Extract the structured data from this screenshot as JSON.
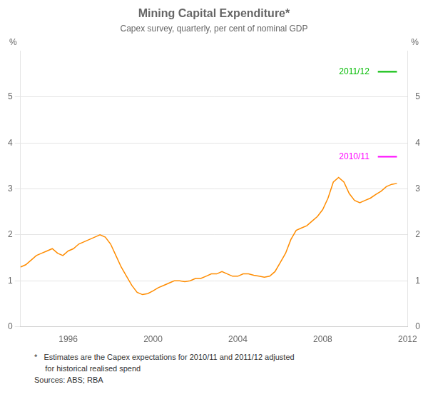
{
  "chart_data": {
    "type": "line",
    "title": "Mining Capital Expenditure*",
    "subtitle": "Capex survey, quarterly, per cent of nominal GDP",
    "ylabel": "%",
    "y2label": "%",
    "x": [
      1993.75,
      1994.0,
      1994.25,
      1994.5,
      1994.75,
      1995.0,
      1995.25,
      1995.5,
      1995.75,
      1996.0,
      1996.25,
      1996.5,
      1996.75,
      1997.0,
      1997.25,
      1997.5,
      1997.75,
      1998.0,
      1998.25,
      1998.5,
      1998.75,
      1999.0,
      1999.25,
      1999.5,
      1999.75,
      2000.0,
      2000.25,
      2000.5,
      2000.75,
      2001.0,
      2001.25,
      2001.5,
      2001.75,
      2002.0,
      2002.25,
      2002.5,
      2002.75,
      2003.0,
      2003.25,
      2003.5,
      2003.75,
      2004.0,
      2004.25,
      2004.5,
      2004.75,
      2005.0,
      2005.25,
      2005.5,
      2005.75,
      2006.0,
      2006.25,
      2006.5,
      2006.75,
      2007.0,
      2007.25,
      2007.5,
      2007.75,
      2008.0,
      2008.25,
      2008.5,
      2008.75,
      2009.0,
      2009.25,
      2009.5,
      2009.75,
      2010.0,
      2010.25,
      2010.5,
      2010.75,
      2011.0,
      2011.25,
      2011.5
    ],
    "values": [
      1.3,
      1.35,
      1.45,
      1.55,
      1.6,
      1.65,
      1.7,
      1.6,
      1.55,
      1.65,
      1.7,
      1.8,
      1.85,
      1.9,
      1.95,
      2.0,
      1.95,
      1.8,
      1.55,
      1.3,
      1.1,
      0.9,
      0.75,
      0.7,
      0.72,
      0.78,
      0.85,
      0.9,
      0.95,
      1.0,
      1.0,
      0.98,
      1.0,
      1.05,
      1.05,
      1.1,
      1.15,
      1.15,
      1.2,
      1.15,
      1.1,
      1.1,
      1.15,
      1.15,
      1.12,
      1.1,
      1.08,
      1.1,
      1.2,
      1.4,
      1.6,
      1.9,
      2.1,
      2.15,
      2.2,
      2.3,
      2.4,
      2.55,
      2.8,
      3.15,
      3.25,
      3.15,
      2.9,
      2.75,
      2.7,
      2.75,
      2.8,
      2.88,
      2.95,
      3.05,
      3.1,
      3.12
    ],
    "color": "#FF8C00",
    "xlim": [
      1993.75,
      2012.0
    ],
    "xticks": [
      1996,
      2000,
      2004,
      2008,
      2012
    ],
    "ylim": [
      0,
      6
    ],
    "yticks": [
      0,
      1,
      2,
      3,
      4,
      5
    ],
    "y2lim": [
      0,
      6
    ],
    "y2ticks": [
      0,
      1,
      2,
      3,
      4,
      5
    ],
    "grid": "y",
    "annotations": [
      {
        "text": "2011/12",
        "x": 2010.2,
        "y": 5.55,
        "color": "#00BB00",
        "line_x": [
          2010.6,
          2011.5
        ]
      },
      {
        "text": "2010/11",
        "x": 2010.2,
        "y": 3.7,
        "color": "#FF00FF",
        "line_x": [
          2010.6,
          2011.5
        ]
      }
    ],
    "footnotes": [
      "*   Estimates are the Capex expectations for 2010/11 and 2011/12 adjusted",
      "     for historical realised spend",
      "Sources: ABS; RBA"
    ]
  }
}
